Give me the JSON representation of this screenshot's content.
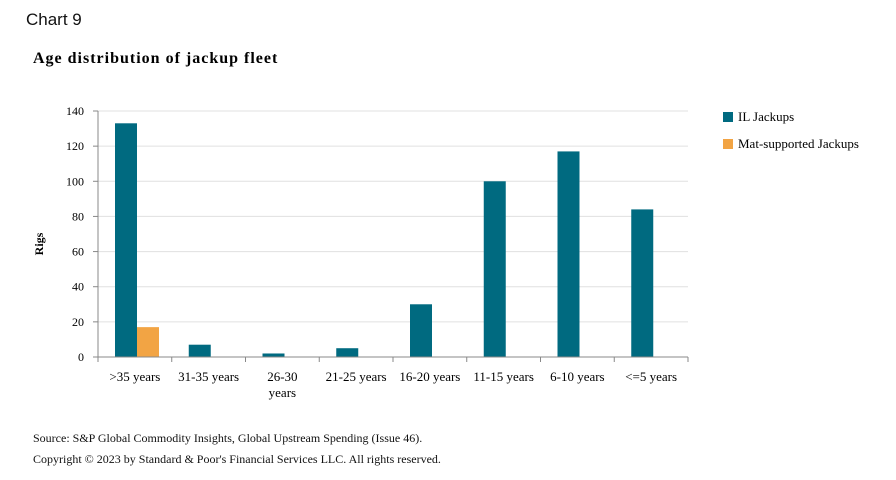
{
  "header": {
    "chart_label": "Chart 9",
    "title": "Age distribution of jackup fleet"
  },
  "footer": {
    "source": "Source: S&P Global Commodity Insights, Global Upstream Spending (Issue 46).",
    "copyright": "Copyright © 2023 by Standard & Poor's Financial Services LLC. All rights reserved."
  },
  "colors": {
    "il_jackups": "#006a80",
    "mat_supported": "#f2a444",
    "grid": "#e0e0e0",
    "axis": "#888888"
  },
  "chart_data": {
    "type": "bar",
    "title": "Age distribution of jackup fleet",
    "xlabel": "",
    "ylabel": "Rigs",
    "ylim": [
      0,
      140
    ],
    "yticks": [
      0,
      20,
      40,
      60,
      80,
      100,
      120,
      140
    ],
    "grid": true,
    "legend_position": "right",
    "categories": [
      ">35 years",
      "31-35 years",
      "26-30 years",
      "21-25 years",
      "16-20 years",
      "11-15 years",
      "6-10 years",
      "<=5 years"
    ],
    "series": [
      {
        "name": "IL Jackups",
        "color": "#006a80",
        "values": [
          133,
          7,
          2,
          5,
          30,
          100,
          117,
          84
        ]
      },
      {
        "name": "Mat-supported Jackups",
        "color": "#f2a444",
        "values": [
          17,
          0,
          0,
          0,
          0,
          0,
          0,
          0
        ]
      }
    ]
  }
}
